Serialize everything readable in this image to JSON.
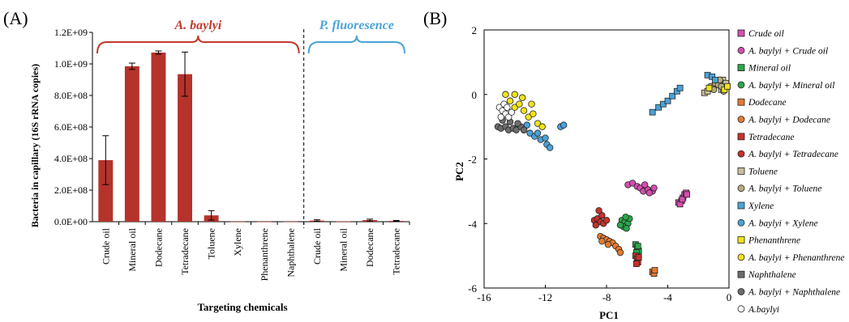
{
  "panel_a_label": "(A)",
  "panel_b_label": "(B)",
  "colors": {
    "bar": "#b5332b",
    "group_a": "#c0392b",
    "group_b": "#4aa3d8"
  },
  "chart_data": [
    {
      "type": "bar",
      "panel": "(A)",
      "categories": [
        "Crude oil",
        "Mineral oil",
        "Dodecane",
        "Tetradecane",
        "Toluene",
        "Xylene",
        "Phenanthrene",
        "Naphthalene",
        "Crude oil",
        "Mineral oil",
        "Dodecane",
        "Tetradecane"
      ],
      "values": [
        390000000,
        985000000,
        1072000000,
        935000000,
        40000000,
        1500000,
        1000000,
        1000000,
        7000000,
        2000000,
        10000000,
        5000000
      ],
      "errors": [
        155000000,
        20000000,
        10000000,
        140000000,
        30000000,
        0,
        0,
        0,
        5000000,
        0,
        6000000,
        3000000
      ],
      "group_labels": [
        "A. baylyi",
        "P. fluoresence"
      ],
      "group_colors": [
        "#c0392b",
        "#4aa3d8"
      ],
      "xlabel": "Targeting chemicals",
      "ylabel": "Bacteria in capillary (16S rRNA copies)",
      "ylim": [
        0,
        1200000000
      ],
      "yticks": [
        "0.0E+00",
        "2.0E+08",
        "4.0E+08",
        "6.0E+08",
        "8.0E+08",
        "1.0E+09",
        "1.2E+09"
      ],
      "grid": false
    },
    {
      "type": "scatter",
      "panel": "(B)",
      "xlabel": "PC1",
      "ylabel": "PC2",
      "xlim": [
        -16,
        0
      ],
      "ylim": [
        -6,
        2
      ],
      "xticks": [
        "-16",
        "-12",
        "-8",
        "-4",
        "0"
      ],
      "yticks": [
        "2",
        "0",
        "-2",
        "-4",
        "-6"
      ],
      "legend_position": "right",
      "series": [
        {
          "name": "Crude oil",
          "color": "#d44fb0",
          "marker": "square",
          "points": [
            [
              -3.3,
              -3.35
            ],
            [
              -3.1,
              -3.3
            ],
            [
              -3.0,
              -3.2
            ],
            [
              -2.9,
              -3.1
            ],
            [
              -2.8,
              -3.05
            ],
            [
              -3.2,
              -3.4
            ],
            [
              -3.05,
              -3.25
            ],
            [
              -2.75,
              -3.1
            ]
          ]
        },
        {
          "name": "A. baylyi + Crude oil",
          "color": "#d44fb0",
          "marker": "circle",
          "points": [
            [
              -6.6,
              -2.8
            ],
            [
              -6.3,
              -2.75
            ],
            [
              -6.0,
              -2.85
            ],
            [
              -5.8,
              -2.9
            ],
            [
              -5.6,
              -3.0
            ],
            [
              -5.3,
              -2.95
            ],
            [
              -5.0,
              -3.0
            ],
            [
              -5.5,
              -2.8
            ],
            [
              -5.2,
              -3.05
            ],
            [
              -4.9,
              -2.9
            ]
          ]
        },
        {
          "name": "Mineral oil",
          "color": "#2aa84a",
          "marker": "square",
          "points": [
            [
              -6.1,
              -4.65
            ],
            [
              -6.0,
              -4.75
            ],
            [
              -5.9,
              -4.85
            ],
            [
              -6.05,
              -4.9
            ],
            [
              -5.95,
              -4.7
            ]
          ]
        },
        {
          "name": "A. baylyi + Mineral oil",
          "color": "#2aa84a",
          "marker": "circle",
          "points": [
            [
              -7.0,
              -3.9
            ],
            [
              -6.8,
              -3.95
            ],
            [
              -6.6,
              -4.0
            ],
            [
              -6.9,
              -4.1
            ],
            [
              -6.7,
              -4.15
            ],
            [
              -6.5,
              -3.85
            ],
            [
              -7.1,
              -4.05
            ],
            [
              -6.75,
              -3.8
            ]
          ]
        },
        {
          "name": "Dodecane",
          "color": "#e37b30",
          "marker": "square",
          "points": [
            [
              -5.0,
              -5.5
            ],
            [
              -4.9,
              -5.55
            ],
            [
              -4.85,
              -5.45
            ]
          ]
        },
        {
          "name": "A. baylyi + Dodecane",
          "color": "#e37b30",
          "marker": "circle",
          "points": [
            [
              -8.4,
              -4.4
            ],
            [
              -8.2,
              -4.45
            ],
            [
              -8.0,
              -4.5
            ],
            [
              -7.8,
              -4.55
            ],
            [
              -7.6,
              -4.6
            ],
            [
              -7.4,
              -4.7
            ],
            [
              -7.2,
              -4.8
            ],
            [
              -7.1,
              -4.9
            ],
            [
              -8.3,
              -4.55
            ],
            [
              -7.9,
              -4.65
            ]
          ]
        },
        {
          "name": "Tetradecane",
          "color": "#c7312a",
          "marker": "square",
          "points": [
            [
              -6.1,
              -5.0
            ],
            [
              -6.0,
              -5.1
            ],
            [
              -5.95,
              -5.2
            ],
            [
              -6.05,
              -5.25
            ],
            [
              -5.9,
              -5.05
            ]
          ]
        },
        {
          "name": "A. baylyi + Tetradecane",
          "color": "#c7312a",
          "marker": "circle",
          "points": [
            [
              -8.8,
              -3.9
            ],
            [
              -8.6,
              -3.85
            ],
            [
              -8.4,
              -3.95
            ],
            [
              -8.2,
              -4.0
            ],
            [
              -8.0,
              -3.9
            ],
            [
              -8.7,
              -4.05
            ],
            [
              -8.3,
              -3.75
            ],
            [
              -8.5,
              -3.6
            ]
          ]
        },
        {
          "name": "Toluene",
          "color": "#c9c09a",
          "marker": "square",
          "points": [
            [
              -1.6,
              0.05
            ],
            [
              -1.4,
              0.1
            ],
            [
              -1.2,
              0.2
            ],
            [
              -1.0,
              0.25
            ],
            [
              -0.8,
              0.3
            ],
            [
              -0.6,
              0.4
            ],
            [
              -0.4,
              0.45
            ],
            [
              -0.2,
              0.35
            ],
            [
              -0.3,
              0.2
            ],
            [
              -0.5,
              0.15
            ]
          ]
        },
        {
          "name": "A. baylyi + Toluene",
          "color": "#b8ae7e",
          "marker": "circle",
          "points": [
            [
              -1.2,
              0.25
            ],
            [
              -0.9,
              0.35
            ],
            [
              -0.7,
              0.3
            ],
            [
              -0.5,
              0.25
            ],
            [
              -0.35,
              0.1
            ],
            [
              -0.6,
              0.45
            ],
            [
              -1.0,
              0.15
            ]
          ]
        },
        {
          "name": "Xylene",
          "color": "#4aa3d8",
          "marker": "square",
          "points": [
            [
              -5.0,
              -0.55
            ],
            [
              -4.6,
              -0.4
            ],
            [
              -4.3,
              -0.3
            ],
            [
              -4.0,
              -0.2
            ],
            [
              -3.7,
              -0.05
            ],
            [
              -3.4,
              0.1
            ],
            [
              -3.2,
              0.2
            ],
            [
              -1.4,
              0.6
            ],
            [
              -1.1,
              0.55
            ],
            [
              -0.9,
              0.45
            ]
          ]
        },
        {
          "name": "A. baylyi + Xylene",
          "color": "#4aa3d8",
          "marker": "circle",
          "points": [
            [
              -13.4,
              -1.1
            ],
            [
              -13.0,
              -1.2
            ],
            [
              -12.7,
              -1.3
            ],
            [
              -12.3,
              -1.4
            ],
            [
              -11.9,
              -1.55
            ],
            [
              -11.7,
              -1.65
            ],
            [
              -13.2,
              -0.95
            ],
            [
              -12.5,
              -1.2
            ],
            [
              -11.0,
              -1.0
            ],
            [
              -10.8,
              -0.95
            ],
            [
              -12.0,
              -1.35
            ]
          ]
        },
        {
          "name": "Phenanthrene",
          "color": "#f2e21a",
          "marker": "square",
          "points": [
            [
              -1.3,
              0.2
            ],
            [
              -0.3,
              0.15
            ],
            [
              -0.1,
              0.25
            ]
          ]
        },
        {
          "name": "A. baylyi + Phenanthrene",
          "color": "#f2e21a",
          "marker": "circle",
          "points": [
            [
              -14.6,
              0.0
            ],
            [
              -14.3,
              -0.2
            ],
            [
              -14.0,
              -0.4
            ],
            [
              -13.7,
              -0.3
            ],
            [
              -13.4,
              -0.5
            ],
            [
              -13.1,
              -0.7
            ],
            [
              -12.8,
              -0.6
            ],
            [
              -12.5,
              -0.9
            ],
            [
              -12.2,
              -1.0
            ],
            [
              -14.0,
              0.0
            ],
            [
              -13.5,
              -0.1
            ],
            [
              -12.9,
              -0.3
            ]
          ]
        },
        {
          "name": "Naphthalene",
          "color": "#6d6d6d",
          "marker": "square",
          "points": []
        },
        {
          "name": "A. baylyi + Naphthalene",
          "color": "#6d6d6d",
          "marker": "circle",
          "points": [
            [
              -15.1,
              -1.0
            ],
            [
              -14.9,
              -1.05
            ],
            [
              -14.6,
              -1.0
            ],
            [
              -14.4,
              -1.1
            ],
            [
              -14.1,
              -1.05
            ],
            [
              -13.9,
              -1.1
            ],
            [
              -13.6,
              -1.0
            ],
            [
              -14.8,
              -0.8
            ],
            [
              -14.3,
              -0.85
            ],
            [
              -13.8,
              -0.9
            ],
            [
              -13.4,
              -1.1
            ]
          ]
        },
        {
          "name": "A.baylyi",
          "color": "#ffffff",
          "marker": "circle",
          "points": [
            [
              -15.0,
              -0.4
            ],
            [
              -14.8,
              -0.5
            ],
            [
              -14.6,
              -0.6
            ],
            [
              -14.4,
              -0.7
            ],
            [
              -14.7,
              -0.3
            ],
            [
              -14.9,
              -0.7
            ],
            [
              -14.5,
              -0.4
            ],
            [
              -14.2,
              -0.55
            ]
          ]
        }
      ]
    }
  ]
}
